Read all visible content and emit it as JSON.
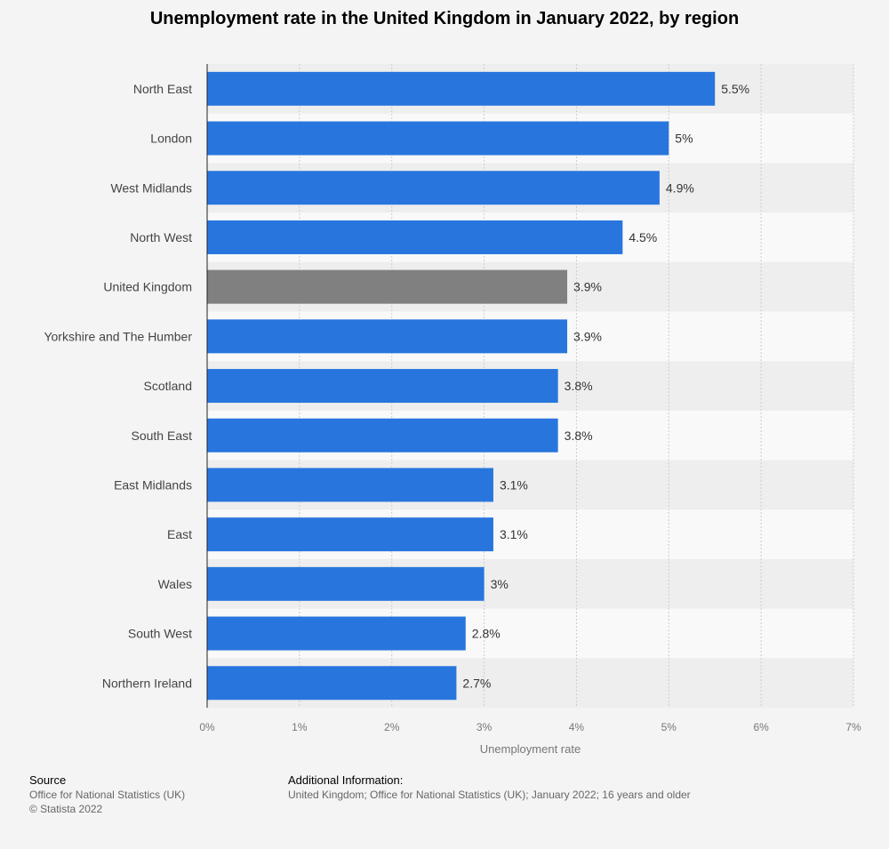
{
  "title": "Unemployment rate in the United Kingdom in January 2022, by region",
  "colors": {
    "bar": "#2876dd",
    "highlight_bar": "#808080",
    "band": "#eeeeee",
    "grid": "#cccccc",
    "background": "#f4f4f4"
  },
  "chart_data": {
    "type": "bar",
    "orientation": "horizontal",
    "categories": [
      "North East",
      "London",
      "West Midlands",
      "North West",
      "United Kingdom",
      "Yorkshire and The Humber",
      "Scotland",
      "South East",
      "East Midlands",
      "East",
      "Wales",
      "South West",
      "Northern Ireland"
    ],
    "values": [
      5.5,
      5,
      4.9,
      4.5,
      3.9,
      3.9,
      3.8,
      3.8,
      3.1,
      3.1,
      3,
      2.8,
      2.7
    ],
    "value_labels": [
      "5.5%",
      "5%",
      "4.9%",
      "4.5%",
      "3.9%",
      "3.9%",
      "3.8%",
      "3.8%",
      "3.1%",
      "3.1%",
      "3%",
      "2.8%",
      "2.7%"
    ],
    "highlight_category": "United Kingdom",
    "xlabel": "Unemployment rate",
    "xlim": [
      0,
      7
    ],
    "x_ticks": [
      0,
      1,
      2,
      3,
      4,
      5,
      6,
      7
    ],
    "x_tick_labels": [
      "0%",
      "1%",
      "2%",
      "3%",
      "4%",
      "5%",
      "6%",
      "7%"
    ],
    "grid": true
  },
  "footer": {
    "source_heading": "Source",
    "source_lines": [
      "Office for National Statistics (UK)",
      "© Statista 2022"
    ],
    "additional_heading": "Additional Information:",
    "additional_text": "United Kingdom; Office for National Statistics (UK); January 2022; 16 years and older"
  }
}
